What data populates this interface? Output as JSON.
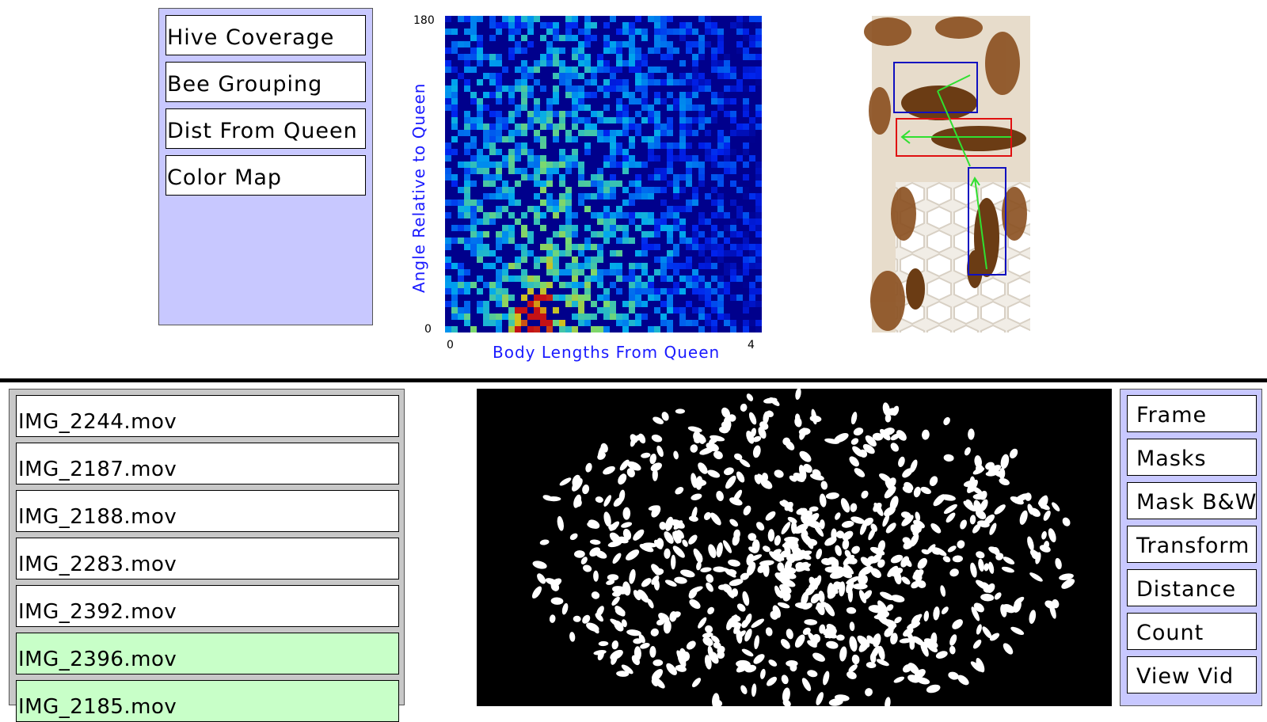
{
  "mode_menu": {
    "buttons": [
      "Hive Coverage",
      "Bee Grouping",
      "Dist From Queen",
      "Color Map"
    ]
  },
  "heatmap": {
    "x_tick_min": "0",
    "x_tick_max": "4",
    "y_tick_min": "0",
    "y_tick_max": "180",
    "xlabel": "Body Lengths From Queen",
    "ylabel": "Angle Relative to Queen",
    "colormap": "jet",
    "background_color": "#00008c"
  },
  "bee_image": {
    "annotations": [
      "queen-box-red",
      "worker-box-blue",
      "worker-box-blue"
    ],
    "queen_box_color": "#e01010",
    "worker_box_color": "#1010c0",
    "heading_line_color": "#30e030"
  },
  "file_list": {
    "items": [
      {
        "name": "IMG_2244.mov",
        "selected": false
      },
      {
        "name": "IMG_2187.mov",
        "selected": false
      },
      {
        "name": "IMG_2188.mov",
        "selected": false
      },
      {
        "name": "IMG_2283.mov",
        "selected": false
      },
      {
        "name": "IMG_2392.mov",
        "selected": false
      },
      {
        "name": "IMG_2396.mov",
        "selected": true
      },
      {
        "name": "IMG_2185.mov",
        "selected": true
      }
    ],
    "selected_color": "#c8ffc8"
  },
  "view_menu": {
    "buttons": [
      "Frame",
      "Masks",
      "Mask B&W",
      "Transform",
      "Distance",
      "Count",
      "View Vid"
    ]
  },
  "colors": {
    "menu_background": "#c8c8ff",
    "list_background": "#c8c8c8",
    "axis_label_color": "#1a1aff"
  }
}
